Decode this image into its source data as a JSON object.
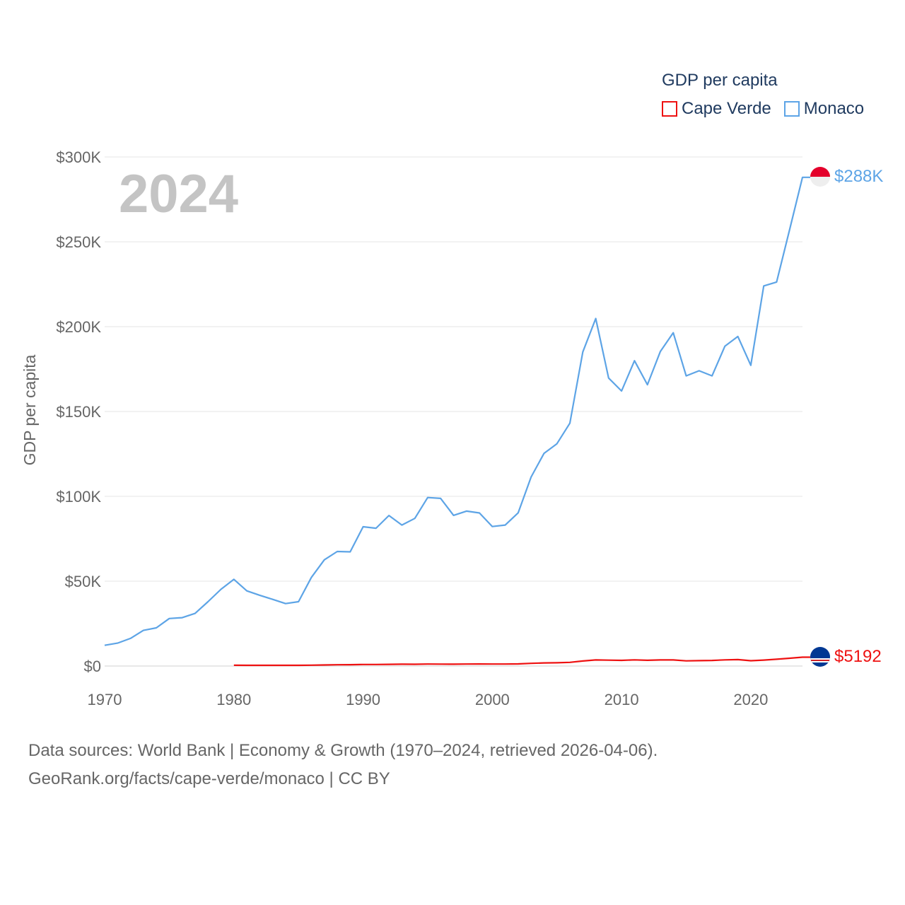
{
  "legend": {
    "title": "GDP per capita",
    "items": [
      {
        "label": "Cape Verde",
        "color": "#ee1111"
      },
      {
        "label": "Monaco",
        "color": "#5da4e6"
      }
    ]
  },
  "year_watermark": "2024",
  "footer": {
    "line1": "Data sources: World Bank | Economy & Growth (1970–2024, retrieved 2026-04-06).",
    "line2": "GeoRank.org/facts/cape-verde/monaco | CC BY"
  },
  "chart_data": {
    "type": "line",
    "title": "GDP per capita",
    "xlabel": "",
    "ylabel": "GDP per capita",
    "xlim": [
      1970,
      2024
    ],
    "ylim": [
      0,
      300000
    ],
    "x_ticks": [
      1970,
      1980,
      1990,
      2000,
      2010,
      2020
    ],
    "y_ticks": [
      {
        "value": 0,
        "label": "$0"
      },
      {
        "value": 50000,
        "label": "$50K"
      },
      {
        "value": 100000,
        "label": "$100K"
      },
      {
        "value": 150000,
        "label": "$150K"
      },
      {
        "value": 200000,
        "label": "$200K"
      },
      {
        "value": 250000,
        "label": "$250K"
      },
      {
        "value": 300000,
        "label": "$300K"
      }
    ],
    "grid": true,
    "legend_position": "top-right",
    "series": [
      {
        "name": "Monaco",
        "color": "#5da4e6",
        "end_label": "$288K",
        "flag": "monaco-flag",
        "x": [
          1970,
          1971,
          1972,
          1973,
          1974,
          1975,
          1976,
          1977,
          1978,
          1979,
          1980,
          1981,
          1982,
          1983,
          1984,
          1985,
          1986,
          1987,
          1988,
          1989,
          1990,
          1991,
          1992,
          1993,
          1994,
          1995,
          1996,
          1997,
          1998,
          1999,
          2000,
          2001,
          2002,
          2003,
          2004,
          2005,
          2006,
          2007,
          2008,
          2009,
          2010,
          2011,
          2012,
          2013,
          2014,
          2015,
          2016,
          2017,
          2018,
          2019,
          2020,
          2021,
          2022,
          2023,
          2024
        ],
        "values": [
          12200,
          13500,
          16300,
          21000,
          22500,
          28000,
          28500,
          31000,
          37900,
          45200,
          51100,
          44300,
          41700,
          39300,
          36800,
          37900,
          52200,
          62600,
          67500,
          67300,
          82100,
          81200,
          88700,
          83100,
          87000,
          99300,
          98800,
          88800,
          91300,
          90200,
          82200,
          83100,
          90300,
          111400,
          125300,
          131000,
          143100,
          185100,
          204800,
          169700,
          162100,
          179900,
          165800,
          185300,
          196400,
          171000,
          174000,
          171000,
          188500,
          194200,
          177200,
          224000,
          226300,
          257000,
          288000
        ]
      },
      {
        "name": "Cape Verde",
        "color": "#ee1111",
        "end_label": "$5192",
        "flag": "cape-verde-flag",
        "x": [
          1980,
          1981,
          1982,
          1983,
          1984,
          1985,
          1986,
          1987,
          1988,
          1989,
          1990,
          1991,
          1992,
          1993,
          1994,
          1995,
          1996,
          1997,
          1998,
          1999,
          2000,
          2001,
          2002,
          2003,
          2004,
          2005,
          2006,
          2007,
          2008,
          2009,
          2010,
          2011,
          2012,
          2013,
          2014,
          2015,
          2016,
          2017,
          2018,
          2019,
          2020,
          2021,
          2022,
          2023,
          2024
        ],
        "values": [
          440,
          430,
          420,
          410,
          400,
          420,
          520,
          640,
          750,
          780,
          910,
          930,
          1000,
          1100,
          1050,
          1150,
          1120,
          1080,
          1150,
          1200,
          1150,
          1150,
          1250,
          1600,
          1830,
          1920,
          2170,
          2970,
          3580,
          3460,
          3330,
          3640,
          3380,
          3600,
          3600,
          3040,
          3160,
          3310,
          3640,
          3780,
          3130,
          3520,
          4000,
          4600,
          5192
        ]
      }
    ]
  }
}
